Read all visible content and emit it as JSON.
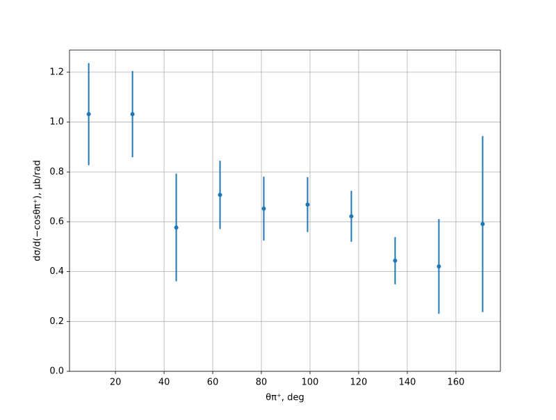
{
  "chart_data": {
    "type": "errorbar",
    "x_label": "θπ⁺, deg",
    "y_label": "dσ/d(−cosθπ⁺), μb/rad",
    "x": [
      9,
      27,
      45,
      63,
      81,
      99,
      117,
      135,
      153,
      171
    ],
    "values": [
      1.032,
      1.032,
      0.577,
      0.708,
      0.653,
      0.669,
      0.622,
      0.444,
      0.421,
      0.591
    ],
    "errors": [
      0.205,
      0.173,
      0.216,
      0.137,
      0.128,
      0.11,
      0.102,
      0.095,
      0.19,
      0.353
    ],
    "color": "#1f77b4",
    "xlim": [
      1.1,
      178.3
    ],
    "ylim": [
      0,
      1.289
    ],
    "xticks": [
      20,
      40,
      60,
      80,
      100,
      120,
      140,
      160
    ],
    "yticks": [
      {
        "value": 0,
        "label": "0.0"
      },
      0.2,
      0.4,
      0.6,
      0.8,
      {
        "value": 1,
        "label": "1.0"
      },
      1.2
    ],
    "grid": true
  }
}
